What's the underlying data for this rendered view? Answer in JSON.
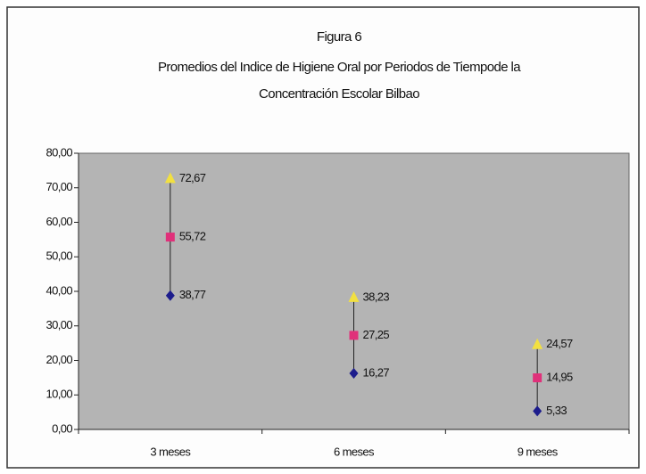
{
  "chart_data": {
    "type": "stock",
    "title": "Figura 6",
    "subtitle": [
      "Promedios del Indice de Higiene Oral por Periodos de Tiempode la",
      "Concentración Escolar Bilbao"
    ],
    "categories": [
      "3 meses",
      "6 meses",
      "9 meses"
    ],
    "series": [
      {
        "color": "#1c1c8c",
        "marker": "diamond",
        "values": [
          38.77,
          16.27,
          5.33
        ],
        "value_labels": [
          "38,77",
          "16,27",
          "5,33"
        ]
      },
      {
        "color": "#e0307a",
        "marker": "square",
        "values": [
          55.72,
          27.25,
          14.95
        ],
        "value_labels": [
          "55,72",
          "27,25",
          "14,95"
        ]
      },
      {
        "color": "#f2e040",
        "marker": "triangle",
        "values": [
          72.67,
          38.23,
          24.57
        ],
        "value_labels": [
          "72,67",
          "38,23",
          "24,57"
        ]
      }
    ],
    "ylim": [
      0,
      80
    ],
    "yticks": [
      {
        "value": 0,
        "label": "0,00"
      },
      {
        "value": 10,
        "label": "10,00"
      },
      {
        "value": 20,
        "label": "20,00"
      },
      {
        "value": 30,
        "label": "30,00"
      },
      {
        "value": 40,
        "label": "40,00"
      },
      {
        "value": 50,
        "label": "50,00"
      },
      {
        "value": 60,
        "label": "60,00"
      },
      {
        "value": 70,
        "label": "70,00"
      },
      {
        "value": 80,
        "label": "80,00"
      }
    ],
    "plot_color": "#b4b4b4"
  }
}
